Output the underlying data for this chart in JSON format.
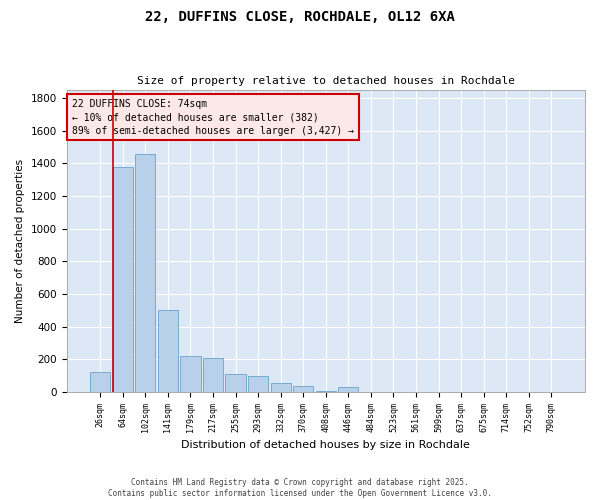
{
  "title_line1": "22, DUFFINS CLOSE, ROCHDALE, OL12 6XA",
  "title_line2": "Size of property relative to detached houses in Rochdale",
  "xlabel": "Distribution of detached houses by size in Rochdale",
  "ylabel": "Number of detached properties",
  "categories": [
    "26sqm",
    "64sqm",
    "102sqm",
    "141sqm",
    "179sqm",
    "217sqm",
    "255sqm",
    "293sqm",
    "332sqm",
    "370sqm",
    "408sqm",
    "446sqm",
    "484sqm",
    "523sqm",
    "561sqm",
    "599sqm",
    "637sqm",
    "675sqm",
    "714sqm",
    "752sqm",
    "790sqm"
  ],
  "values": [
    120,
    1380,
    1460,
    500,
    220,
    210,
    110,
    100,
    55,
    35,
    5,
    28,
    0,
    0,
    0,
    0,
    0,
    0,
    0,
    0,
    0
  ],
  "bar_color": "#b8d0ea",
  "bar_edge_color": "#7aaad0",
  "background_color": "#dce8f5",
  "grid_color": "#ffffff",
  "vline_color": "#cc0000",
  "vline_pos": 0.555,
  "annotation_text": "22 DUFFINS CLOSE: 74sqm\n← 10% of detached houses are smaller (382)\n89% of semi-detached houses are larger (3,427) →",
  "annotation_edge_color": "#cc0000",
  "annotation_face_color": "#fde8e8",
  "ylim": [
    0,
    1850
  ],
  "yticks": [
    0,
    200,
    400,
    600,
    800,
    1000,
    1200,
    1400,
    1600,
    1800
  ],
  "footer_line1": "Contains HM Land Registry data © Crown copyright and database right 2025.",
  "footer_line2": "Contains public sector information licensed under the Open Government Licence v3.0."
}
